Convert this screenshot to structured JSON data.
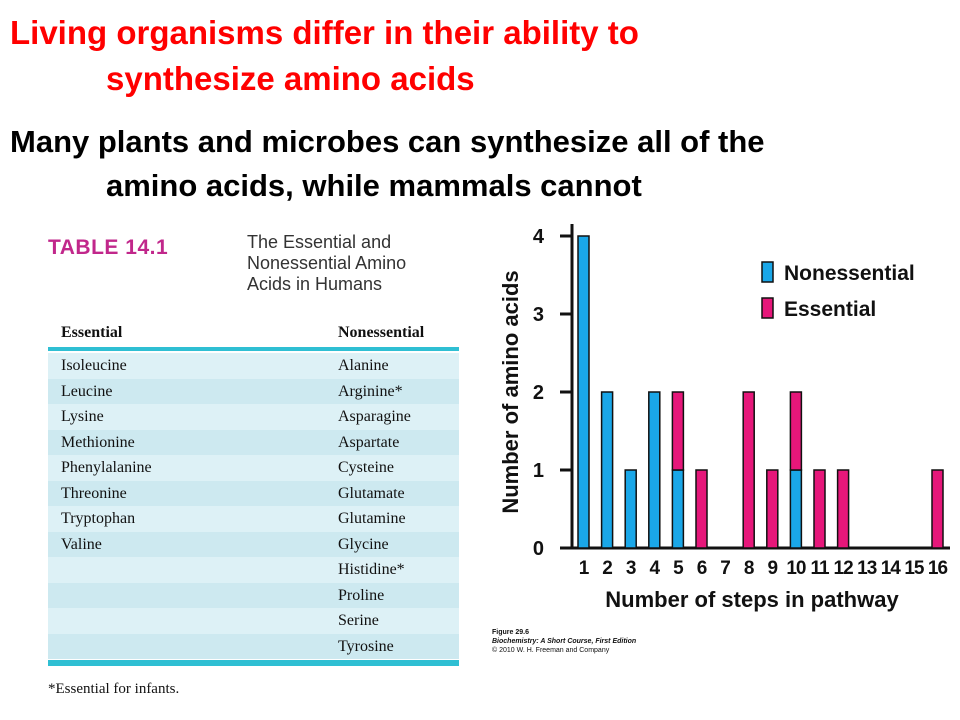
{
  "header": {
    "title_line1": "Living organisms differ in their ability to",
    "title_line2": "synthesize amino acids",
    "subtitle_line1": "Many plants and microbes can synthesize all of the",
    "subtitle_line2": "amino acids, while mammals cannot",
    "title_color": "#ff0000"
  },
  "table": {
    "number": "TABLE 14.1",
    "caption_line1": "The Essential and",
    "caption_line2": "Nonessential Amino",
    "caption_line3": "Acids in Humans",
    "col_essential": "Essential",
    "col_nonessential": "Nonessential",
    "rows": [
      [
        "Isoleucine",
        "Alanine"
      ],
      [
        "Leucine",
        "Arginine*"
      ],
      [
        "Lysine",
        "Asparagine"
      ],
      [
        "Methionine",
        "Aspartate"
      ],
      [
        "Phenylalanine",
        "Cysteine"
      ],
      [
        "Threonine",
        "Glutamate"
      ],
      [
        "Tryptophan",
        "Glutamine"
      ],
      [
        "Valine",
        "Glycine"
      ],
      [
        "",
        "Histidine*"
      ],
      [
        "",
        "Proline"
      ],
      [
        "",
        "Serine"
      ],
      [
        "",
        "Tyrosine"
      ]
    ],
    "footnote": "*Essential for infants.",
    "accent_color": "#2fbfd3",
    "number_color": "#c1278b"
  },
  "credit": {
    "line1": "Figure 29.6",
    "line2": "Biochemistry: A Short Course, First Edition",
    "line3": "© 2010 W. H. Freeman and Company"
  },
  "chart_data": {
    "type": "bar",
    "stacked": true,
    "categories": [
      "1",
      "2",
      "3",
      "4",
      "5",
      "6",
      "7",
      "8",
      "9",
      "10",
      "11",
      "12",
      "13",
      "14",
      "15",
      "16"
    ],
    "series": [
      {
        "name": "Nonessential",
        "color": "#1aa7e8",
        "values": [
          4,
          2,
          1,
          2,
          1,
          0,
          0,
          0,
          0,
          1,
          0,
          0,
          0,
          0,
          0,
          0
        ]
      },
      {
        "name": "Essential",
        "color": "#e6177a",
        "values": [
          0,
          0,
          0,
          0,
          1,
          1,
          0,
          2,
          1,
          1,
          1,
          1,
          0,
          0,
          0,
          1
        ]
      }
    ],
    "xlabel": "Number of steps in pathway",
    "ylabel": "Number of amino acids",
    "ylim": [
      0,
      4
    ],
    "yticks": [
      0,
      1,
      2,
      3,
      4
    ],
    "legend_position": "top-right",
    "grid": false
  }
}
